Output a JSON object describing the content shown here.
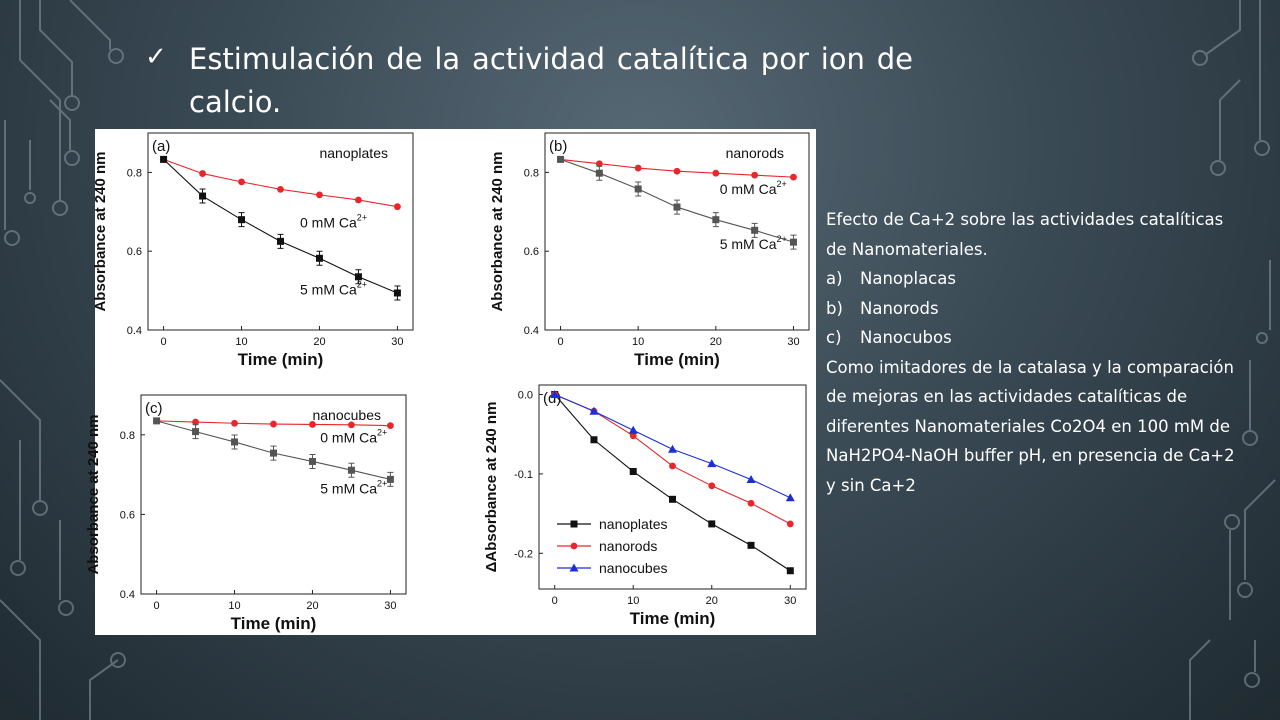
{
  "slide": {
    "check_glyph": "✓",
    "title": "Estimulación de la actividad catalítica por ion de calcio.",
    "caption_intro": "Efecto de Ca+2 sobre las actividades catalíticas de Nanomateriales.",
    "caption_items": [
      {
        "label": "a)",
        "text": "Nanoplacas"
      },
      {
        "label": "b)",
        "text": "Nanorods"
      },
      {
        "label": "c)",
        "text": "Nanocubos"
      }
    ],
    "caption_outro": "Como imitadores de la catalasa y la comparación de mejoras en las actividades catalíticas de diferentes Nanomateriales Co2O4 en 100 mM de NaH2PO4-NaOH buffer pH, en presencia de Ca+2 y sin Ca+2",
    "colors": {
      "black": "#111111",
      "grey": "#555555",
      "red": "#e8262b",
      "blue": "#1c2fd6"
    }
  },
  "chart_data": [
    {
      "type": "line",
      "panel": "(a)",
      "annotation": "nanoplates",
      "xlabel": "Time (min)",
      "ylabel": "Absorbance at 240 nm",
      "xlim": [
        -2,
        32
      ],
      "ylim": [
        0.4,
        0.9
      ],
      "xticks": [
        0,
        10,
        20,
        30
      ],
      "yticks": [
        0.4,
        0.6,
        0.8
      ],
      "x": [
        0,
        5,
        10,
        15,
        20,
        25,
        30
      ],
      "series": [
        {
          "name": "0 mM Ca2+",
          "color": "red",
          "marker": "circle",
          "values": [
            0.833,
            0.797,
            0.776,
            0.757,
            0.743,
            0.73,
            0.713
          ]
        },
        {
          "name": "5 mM Ca2+",
          "color": "black",
          "marker": "square",
          "values": [
            0.833,
            0.74,
            0.68,
            0.625,
            0.582,
            0.535,
            0.494
          ],
          "errorbars": true
        }
      ],
      "labels": [
        {
          "text": "0 mM Ca",
          "sup": "2+",
          "x": 17.5,
          "y": 0.66
        },
        {
          "text": "5 mM Ca",
          "sup": "2+",
          "x": 17.5,
          "y": 0.49
        }
      ]
    },
    {
      "type": "line",
      "panel": "(b)",
      "annotation": "nanorods",
      "xlabel": "Time (min)",
      "ylabel": "Absorbance at 240 nm",
      "xlim": [
        -2,
        32
      ],
      "ylim": [
        0.4,
        0.9
      ],
      "xticks": [
        0,
        10,
        20,
        30
      ],
      "yticks": [
        0.4,
        0.6,
        0.8
      ],
      "x": [
        0,
        5,
        10,
        15,
        20,
        25,
        30
      ],
      "series": [
        {
          "name": "0 mM Ca2+",
          "color": "red",
          "marker": "circle",
          "values": [
            0.833,
            0.822,
            0.811,
            0.803,
            0.798,
            0.793,
            0.788
          ]
        },
        {
          "name": "5 mM Ca2+",
          "color": "grey",
          "marker": "square",
          "values": [
            0.833,
            0.798,
            0.758,
            0.712,
            0.68,
            0.653,
            0.623
          ],
          "errorbars": true
        }
      ],
      "labels": [
        {
          "text": "0 mM Ca",
          "sup": "2+",
          "x": 20.5,
          "y": 0.745
        },
        {
          "text": "5 mM Ca",
          "sup": "2+",
          "x": 20.5,
          "y": 0.605
        }
      ]
    },
    {
      "type": "line",
      "panel": "(c)",
      "annotation": "nanocubes",
      "xlabel": "Time (min)",
      "ylabel": "Absorbance at 240 nm",
      "xlim": [
        -2,
        32
      ],
      "ylim": [
        0.4,
        0.9
      ],
      "xticks": [
        0,
        10,
        20,
        30
      ],
      "yticks": [
        0.4,
        0.6,
        0.8
      ],
      "x": [
        0,
        5,
        10,
        15,
        20,
        25,
        30
      ],
      "series": [
        {
          "name": "0 mM Ca2+",
          "color": "red",
          "marker": "circle",
          "values": [
            0.835,
            0.832,
            0.829,
            0.827,
            0.826,
            0.825,
            0.823
          ]
        },
        {
          "name": "5 mM Ca2+",
          "color": "grey",
          "marker": "square",
          "values": [
            0.835,
            0.808,
            0.782,
            0.754,
            0.733,
            0.711,
            0.688
          ],
          "errorbars": true
        }
      ],
      "labels": [
        {
          "text": "0 mM Ca",
          "sup": "2+",
          "x": 21.0,
          "y": 0.781
        },
        {
          "text": "5 mM Ca",
          "sup": "2+",
          "x": 21.0,
          "y": 0.653
        }
      ]
    },
    {
      "type": "line",
      "panel": "(d)",
      "xlabel": "Time (min)",
      "ylabel": "ΔAbsorbance at 240 nm",
      "xlim": [
        -2,
        32
      ],
      "ylim": [
        -0.245,
        0.012
      ],
      "xticks": [
        0,
        10,
        20,
        30
      ],
      "yticks": [
        0.0,
        -0.1,
        -0.2
      ],
      "ytick_labels": [
        "0.0",
        "-0.1",
        "-0.2"
      ],
      "x": [
        0,
        5,
        10,
        15,
        20,
        25,
        30
      ],
      "series": [
        {
          "name": "nanoplates",
          "color": "black",
          "marker": "square",
          "values": [
            0.0,
            -0.057,
            -0.097,
            -0.132,
            -0.163,
            -0.19,
            -0.222
          ]
        },
        {
          "name": "nanorods",
          "color": "red",
          "marker": "circle",
          "values": [
            0.0,
            -0.021,
            -0.052,
            -0.09,
            -0.115,
            -0.137,
            -0.163
          ]
        },
        {
          "name": "nanocubes",
          "color": "blue",
          "marker": "triangle",
          "values": [
            0.0,
            -0.021,
            -0.045,
            -0.069,
            -0.087,
            -0.107,
            -0.13
          ]
        }
      ],
      "legend": "bottom-left"
    }
  ]
}
